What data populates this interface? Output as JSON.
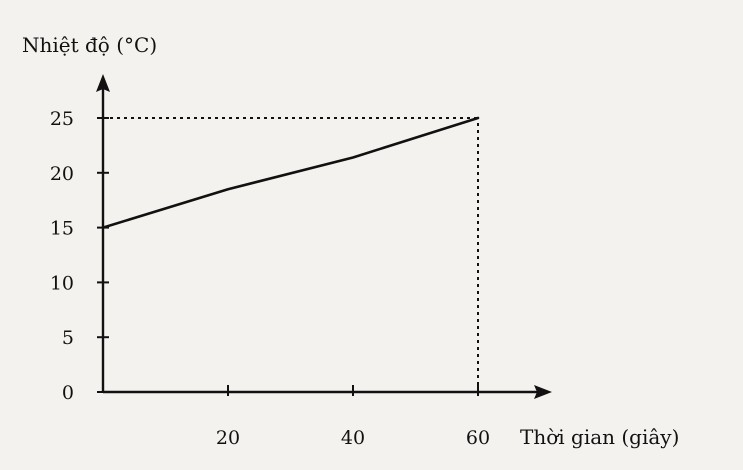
{
  "chart_data": {
    "type": "line",
    "title": "",
    "ylabel": "Nhiệt độ (°C)",
    "xlabel": "Thời gian (giây)",
    "xlim": [
      0,
      60
    ],
    "ylim": [
      0,
      25
    ],
    "x_ticks": [
      20,
      40,
      60
    ],
    "y_ticks": [
      0,
      5,
      10,
      15,
      20,
      25
    ],
    "grid": false,
    "series": [
      {
        "x": [
          0,
          20,
          40,
          60
        ],
        "y": [
          15,
          18.5,
          21.4,
          25
        ]
      }
    ],
    "reference_lines": [
      {
        "from": [
          0,
          25
        ],
        "to": [
          60,
          25
        ],
        "style": "dotted"
      },
      {
        "from": [
          60,
          0
        ],
        "to": [
          60,
          25
        ],
        "style": "dotted"
      }
    ],
    "colors": {
      "line": "#111111",
      "axis": "#111111",
      "background": "#f4f2ee"
    }
  }
}
